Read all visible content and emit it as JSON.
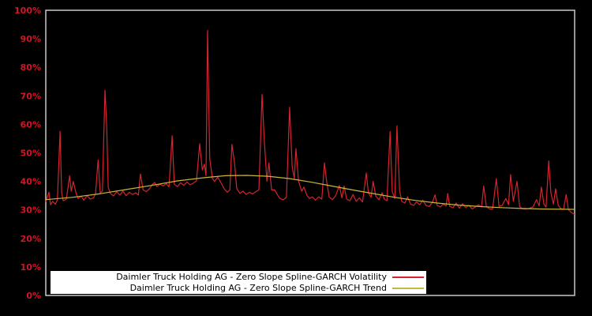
{
  "window": {
    "background_color": "#000000"
  },
  "chart_data": {
    "type": "line",
    "title": "",
    "xlabel": "",
    "ylabel": "",
    "ylim": [
      0,
      100
    ],
    "grid": false,
    "legend_position": "bottom-left-inside",
    "legend_background": "#ffffff",
    "plot_border_color": "#c9c9c9",
    "axis": {
      "tick_label_color": "#cf1827",
      "y_ticks": [
        {
          "pct": 0,
          "label": "0%"
        },
        {
          "pct": 10,
          "label": "10%"
        },
        {
          "pct": 20,
          "label": "20%"
        },
        {
          "pct": 30,
          "label": "30%"
        },
        {
          "pct": 40,
          "label": "40%"
        },
        {
          "pct": 50,
          "label": "50%"
        },
        {
          "pct": 60,
          "label": "60%"
        },
        {
          "pct": 70,
          "label": "70%"
        },
        {
          "pct": 80,
          "label": "80%"
        },
        {
          "pct": 90,
          "label": "90%"
        },
        {
          "pct": 100,
          "label": "100%"
        }
      ]
    },
    "series": [
      {
        "name": "Daimler Truck Holding AG - Zero Slope Spline-GARCH Volatility",
        "color": "#d5242e",
        "x_unit": "fraction_of_axis",
        "y_unit": "percent",
        "points": [
          [
            0.0,
            32.8
          ],
          [
            0.003,
            34.5
          ],
          [
            0.006,
            36.2
          ],
          [
            0.009,
            31.8
          ],
          [
            0.013,
            33.0
          ],
          [
            0.018,
            32.0
          ],
          [
            0.022,
            33.5
          ],
          [
            0.027,
            57.5
          ],
          [
            0.03,
            36.0
          ],
          [
            0.033,
            33.2
          ],
          [
            0.039,
            33.8
          ],
          [
            0.045,
            42.0
          ],
          [
            0.048,
            36.5
          ],
          [
            0.052,
            40.0
          ],
          [
            0.057,
            36.0
          ],
          [
            0.061,
            34.0
          ],
          [
            0.067,
            34.8
          ],
          [
            0.072,
            33.4
          ],
          [
            0.078,
            35.0
          ],
          [
            0.084,
            33.8
          ],
          [
            0.09,
            34.2
          ],
          [
            0.094,
            35.6
          ],
          [
            0.099,
            47.5
          ],
          [
            0.103,
            36.0
          ],
          [
            0.107,
            36.5
          ],
          [
            0.112,
            72.0
          ],
          [
            0.115,
            60.0
          ],
          [
            0.118,
            38.0
          ],
          [
            0.122,
            35.8
          ],
          [
            0.128,
            34.9
          ],
          [
            0.134,
            36.4
          ],
          [
            0.14,
            35.2
          ],
          [
            0.146,
            36.6
          ],
          [
            0.152,
            35.0
          ],
          [
            0.158,
            36.2
          ],
          [
            0.164,
            35.4
          ],
          [
            0.17,
            36.0
          ],
          [
            0.175,
            35.2
          ],
          [
            0.179,
            42.6
          ],
          [
            0.184,
            37.0
          ],
          [
            0.19,
            36.4
          ],
          [
            0.196,
            37.4
          ],
          [
            0.201,
            38.8
          ],
          [
            0.206,
            39.6
          ],
          [
            0.21,
            38.2
          ],
          [
            0.216,
            39.0
          ],
          [
            0.222,
            38.4
          ],
          [
            0.228,
            39.2
          ],
          [
            0.233,
            38.0
          ],
          [
            0.239,
            56.0
          ],
          [
            0.243,
            39.0
          ],
          [
            0.249,
            38.2
          ],
          [
            0.255,
            39.5
          ],
          [
            0.261,
            38.6
          ],
          [
            0.267,
            39.8
          ],
          [
            0.273,
            38.8
          ],
          [
            0.279,
            39.4
          ],
          [
            0.285,
            40.2
          ],
          [
            0.291,
            53.2
          ],
          [
            0.296,
            44.0
          ],
          [
            0.3,
            46.0
          ],
          [
            0.303,
            42.0
          ],
          [
            0.306,
            93.0
          ],
          [
            0.31,
            48.0
          ],
          [
            0.315,
            41.0
          ],
          [
            0.319,
            40.0
          ],
          [
            0.325,
            41.5
          ],
          [
            0.331,
            39.6
          ],
          [
            0.337,
            37.5
          ],
          [
            0.343,
            36.2
          ],
          [
            0.348,
            37.0
          ],
          [
            0.352,
            53.0
          ],
          [
            0.357,
            46.3
          ],
          [
            0.361,
            37.5
          ],
          [
            0.367,
            35.8
          ],
          [
            0.373,
            36.6
          ],
          [
            0.379,
            35.4
          ],
          [
            0.385,
            36.2
          ],
          [
            0.391,
            35.6
          ],
          [
            0.397,
            36.4
          ],
          [
            0.403,
            37.0
          ],
          [
            0.409,
            70.5
          ],
          [
            0.413,
            55.0
          ],
          [
            0.418,
            40.0
          ],
          [
            0.422,
            46.5
          ],
          [
            0.427,
            37.0
          ],
          [
            0.433,
            37.0
          ],
          [
            0.439,
            35.0
          ],
          [
            0.443,
            34.0
          ],
          [
            0.449,
            33.5
          ],
          [
            0.455,
            34.5
          ],
          [
            0.461,
            66.0
          ],
          [
            0.466,
            45.0
          ],
          [
            0.47,
            41.0
          ],
          [
            0.473,
            51.5
          ],
          [
            0.478,
            40.0
          ],
          [
            0.484,
            36.5
          ],
          [
            0.488,
            38.0
          ],
          [
            0.494,
            35.0
          ],
          [
            0.499,
            34.0
          ],
          [
            0.504,
            34.6
          ],
          [
            0.51,
            33.4
          ],
          [
            0.516,
            34.6
          ],
          [
            0.522,
            33.8
          ],
          [
            0.527,
            46.5
          ],
          [
            0.531,
            40.0
          ],
          [
            0.536,
            34.5
          ],
          [
            0.542,
            33.6
          ],
          [
            0.548,
            35.0
          ],
          [
            0.555,
            38.6
          ],
          [
            0.56,
            34.2
          ],
          [
            0.564,
            38.4
          ],
          [
            0.569,
            33.8
          ],
          [
            0.575,
            33.2
          ],
          [
            0.581,
            35.4
          ],
          [
            0.587,
            33.0
          ],
          [
            0.593,
            34.2
          ],
          [
            0.599,
            32.8
          ],
          [
            0.606,
            43.0
          ],
          [
            0.61,
            36.0
          ],
          [
            0.615,
            34.4
          ],
          [
            0.619,
            40.0
          ],
          [
            0.624,
            34.8
          ],
          [
            0.63,
            33.6
          ],
          [
            0.636,
            36.0
          ],
          [
            0.64,
            33.8
          ],
          [
            0.645,
            33.2
          ],
          [
            0.651,
            57.5
          ],
          [
            0.655,
            36.5
          ],
          [
            0.66,
            34.0
          ],
          [
            0.664,
            59.5
          ],
          [
            0.669,
            37.0
          ],
          [
            0.673,
            33.0
          ],
          [
            0.679,
            32.4
          ],
          [
            0.684,
            34.6
          ],
          [
            0.69,
            32.0
          ],
          [
            0.696,
            31.6
          ],
          [
            0.701,
            32.8
          ],
          [
            0.707,
            31.8
          ],
          [
            0.713,
            33.4
          ],
          [
            0.719,
            31.6
          ],
          [
            0.725,
            31.2
          ],
          [
            0.731,
            32.6
          ],
          [
            0.736,
            35.3
          ],
          [
            0.74,
            31.6
          ],
          [
            0.746,
            31.0
          ],
          [
            0.751,
            32.0
          ],
          [
            0.757,
            31.4
          ],
          [
            0.76,
            35.8
          ],
          [
            0.764,
            31.2
          ],
          [
            0.77,
            30.8
          ],
          [
            0.776,
            32.4
          ],
          [
            0.782,
            30.6
          ],
          [
            0.788,
            32.2
          ],
          [
            0.794,
            30.8
          ],
          [
            0.8,
            31.6
          ],
          [
            0.806,
            30.4
          ],
          [
            0.812,
            31.0
          ],
          [
            0.818,
            31.8
          ],
          [
            0.824,
            31.0
          ],
          [
            0.828,
            38.4
          ],
          [
            0.833,
            31.2
          ],
          [
            0.839,
            30.4
          ],
          [
            0.845,
            30.3
          ],
          [
            0.852,
            41.0
          ],
          [
            0.857,
            31.2
          ],
          [
            0.863,
            31.6
          ],
          [
            0.87,
            34.0
          ],
          [
            0.875,
            31.8
          ],
          [
            0.879,
            42.4
          ],
          [
            0.884,
            33.0
          ],
          [
            0.891,
            40.0
          ],
          [
            0.896,
            31.2
          ],
          [
            0.901,
            30.4
          ],
          [
            0.907,
            30.3
          ],
          [
            0.913,
            30.5
          ],
          [
            0.921,
            31.0
          ],
          [
            0.928,
            33.6
          ],
          [
            0.933,
            31.4
          ],
          [
            0.937,
            38.0
          ],
          [
            0.942,
            32.0
          ],
          [
            0.946,
            31.0
          ],
          [
            0.951,
            47.2
          ],
          [
            0.955,
            36.0
          ],
          [
            0.96,
            32.0
          ],
          [
            0.964,
            37.4
          ],
          [
            0.969,
            31.6
          ],
          [
            0.973,
            30.6
          ],
          [
            0.979,
            30.2
          ],
          [
            0.984,
            35.4
          ],
          [
            0.988,
            30.2
          ],
          [
            0.993,
            29.2
          ],
          [
            1.0,
            28.4
          ]
        ]
      },
      {
        "name": "Daimler Truck Holding AG - Zero Slope Spline-GARCH Trend",
        "color": "#c7b73a",
        "x_unit": "fraction_of_axis",
        "y_unit": "percent",
        "points": [
          [
            0.0,
            33.6
          ],
          [
            0.05,
            34.4
          ],
          [
            0.1,
            35.6
          ],
          [
            0.15,
            37.1
          ],
          [
            0.2,
            38.6
          ],
          [
            0.25,
            40.2
          ],
          [
            0.3,
            41.3
          ],
          [
            0.34,
            42.0
          ],
          [
            0.38,
            42.1
          ],
          [
            0.42,
            41.8
          ],
          [
            0.46,
            41.0
          ],
          [
            0.5,
            39.8
          ],
          [
            0.54,
            38.4
          ],
          [
            0.58,
            37.0
          ],
          [
            0.62,
            35.7
          ],
          [
            0.66,
            34.4
          ],
          [
            0.7,
            33.3
          ],
          [
            0.74,
            32.4
          ],
          [
            0.78,
            31.7
          ],
          [
            0.82,
            31.2
          ],
          [
            0.86,
            30.8
          ],
          [
            0.9,
            30.5
          ],
          [
            0.94,
            30.3
          ],
          [
            1.0,
            30.2
          ]
        ]
      }
    ]
  }
}
